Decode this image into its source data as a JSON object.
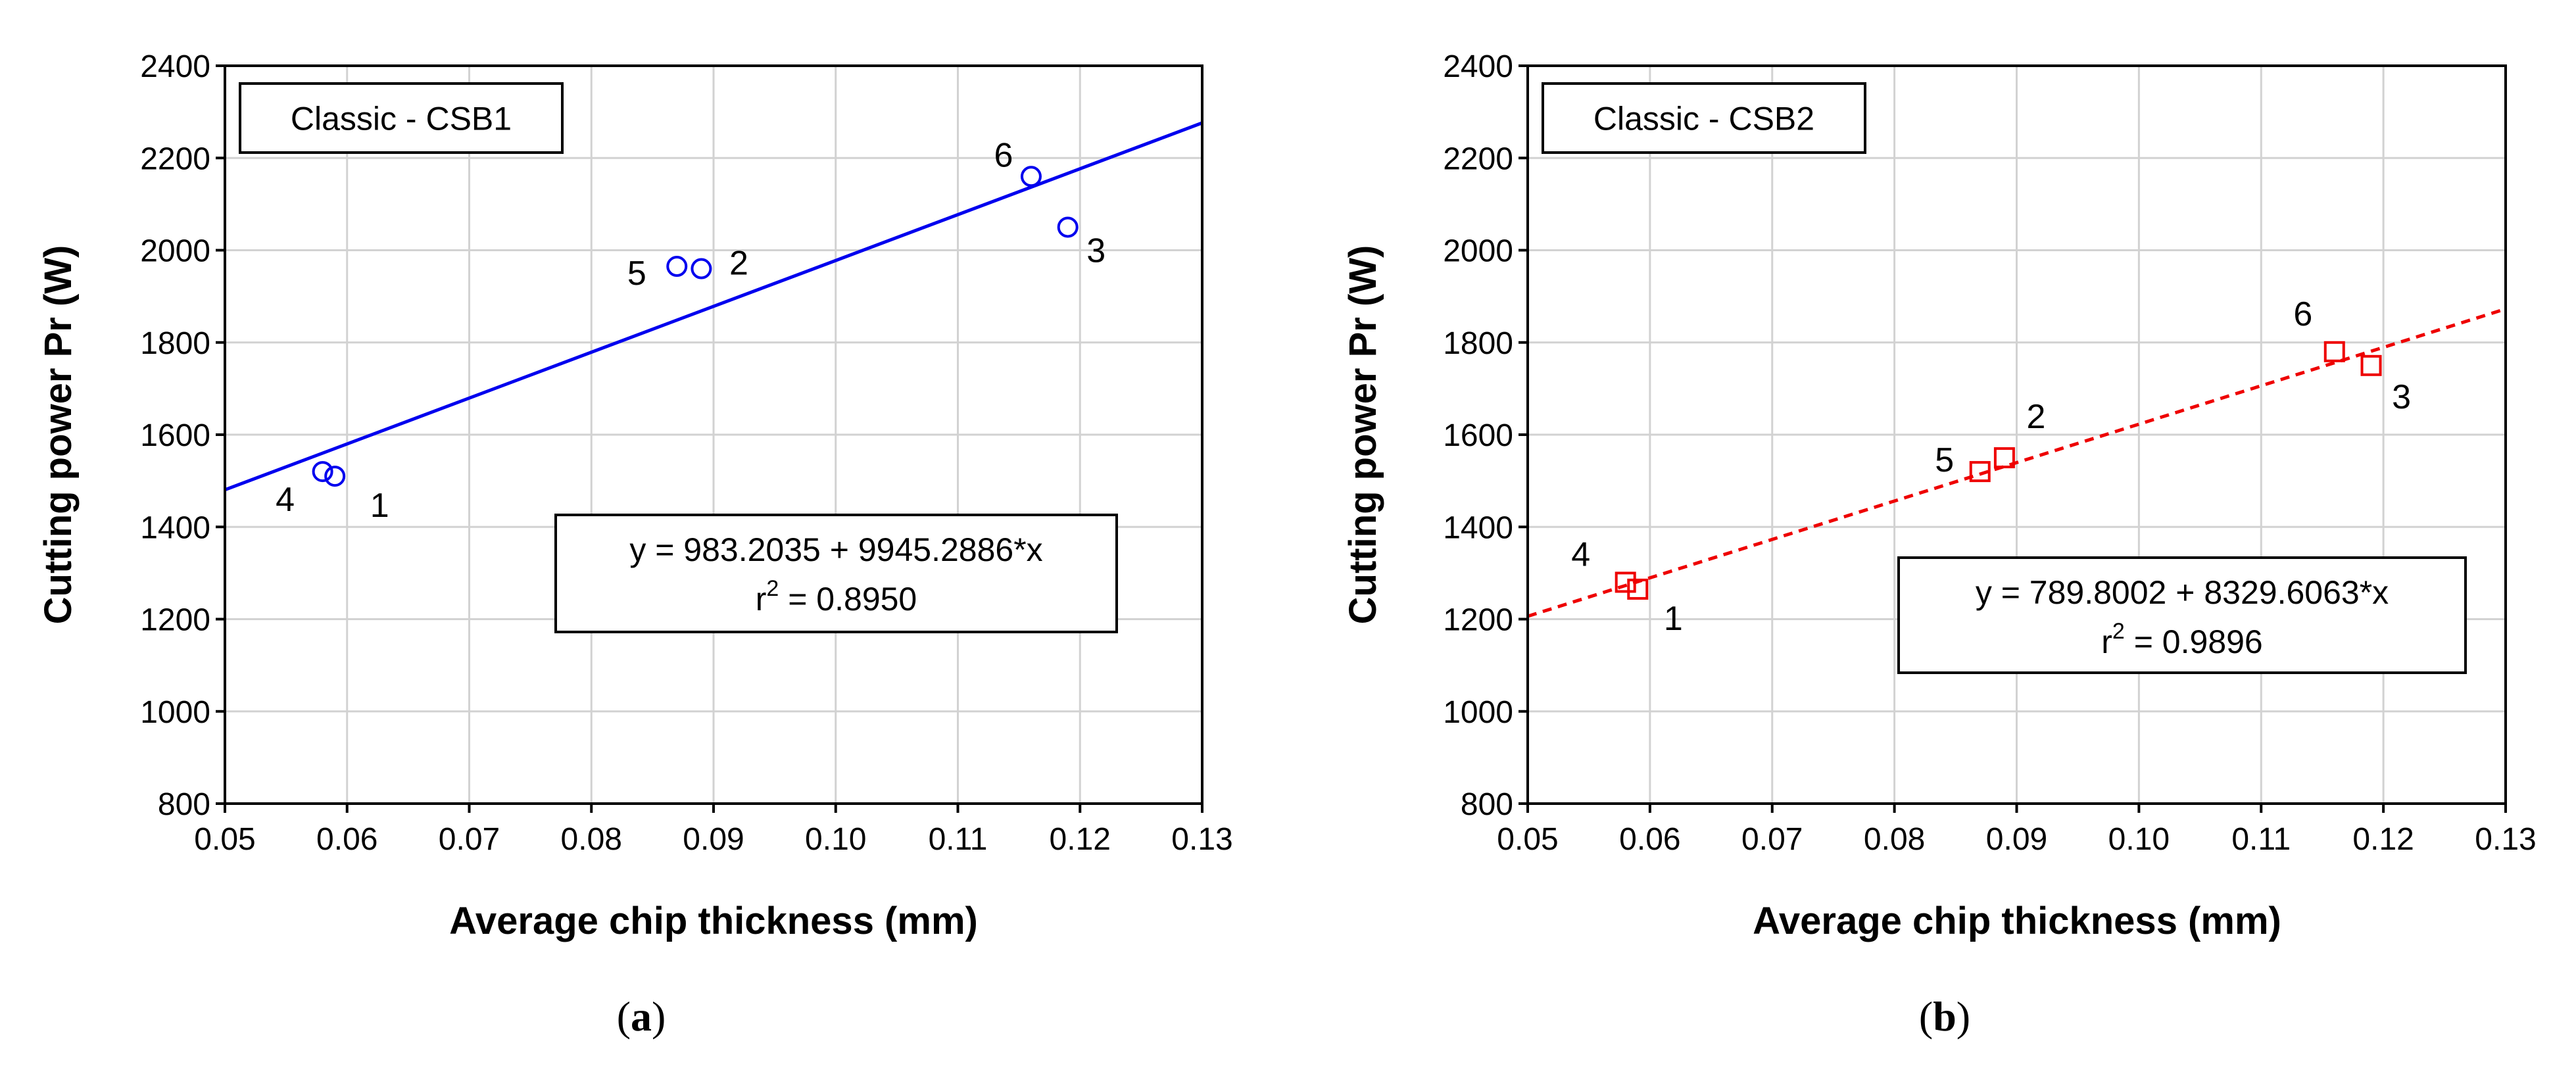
{
  "chart_data": [
    {
      "type": "scatter",
      "id": "a",
      "panel_label": "a",
      "title_box": "Classic - CSB1",
      "xlabel": "Average chip thickness (mm)",
      "ylabel": "Cutting power Pr (W)",
      "xlim": [
        0.05,
        0.13
      ],
      "ylim": [
        800,
        2400
      ],
      "xticks": [
        "0.05",
        "0.06",
        "0.07",
        "0.08",
        "0.09",
        "0.10",
        "0.11",
        "0.12",
        "0.13"
      ],
      "yticks": [
        "800",
        "1000",
        "1200",
        "1400",
        "1600",
        "1800",
        "2000",
        "2200",
        "2400"
      ],
      "grid": true,
      "marker": "circle",
      "color": "#0000ee",
      "fit_style": "solid",
      "points": [
        {
          "label": "1",
          "x": 0.059,
          "y": 1510
        },
        {
          "label": "2",
          "x": 0.089,
          "y": 1960
        },
        {
          "label": "3",
          "x": 0.119,
          "y": 2050
        },
        {
          "label": "4",
          "x": 0.058,
          "y": 1520
        },
        {
          "label": "5",
          "x": 0.087,
          "y": 1965
        },
        {
          "label": "6",
          "x": 0.116,
          "y": 2160
        }
      ],
      "fit": {
        "intercept": 983.2035,
        "slope": 9945.2886
      },
      "equation": "y = 983.2035 + 9945.2886*x",
      "r2_prefix": "r",
      "r2_sup": "2",
      "r2_value": " = 0.8950"
    },
    {
      "type": "scatter",
      "id": "b",
      "panel_label": "b",
      "title_box": "Classic - CSB2",
      "xlabel": "Average chip thickness (mm)",
      "ylabel": "Cutting power Pr (W)",
      "xlim": [
        0.05,
        0.13
      ],
      "ylim": [
        800,
        2400
      ],
      "xticks": [
        "0.05",
        "0.06",
        "0.07",
        "0.08",
        "0.09",
        "0.10",
        "0.11",
        "0.12",
        "0.13"
      ],
      "yticks": [
        "800",
        "1000",
        "1200",
        "1400",
        "1600",
        "1800",
        "2000",
        "2200",
        "2400"
      ],
      "grid": true,
      "marker": "square",
      "color": "#ee0000",
      "fit_style": "dashed",
      "points": [
        {
          "label": "1",
          "x": 0.059,
          "y": 1265
        },
        {
          "label": "2",
          "x": 0.089,
          "y": 1550
        },
        {
          "label": "3",
          "x": 0.119,
          "y": 1750
        },
        {
          "label": "4",
          "x": 0.058,
          "y": 1280
        },
        {
          "label": "5",
          "x": 0.087,
          "y": 1520
        },
        {
          "label": "6",
          "x": 0.116,
          "y": 1780
        }
      ],
      "fit": {
        "intercept": 789.8002,
        "slope": 8329.6063
      },
      "equation": "y = 789.8002 + 8329.6063*x",
      "r2_prefix": "r",
      "r2_sup": "2",
      "r2_value": " = 0.9896"
    }
  ]
}
